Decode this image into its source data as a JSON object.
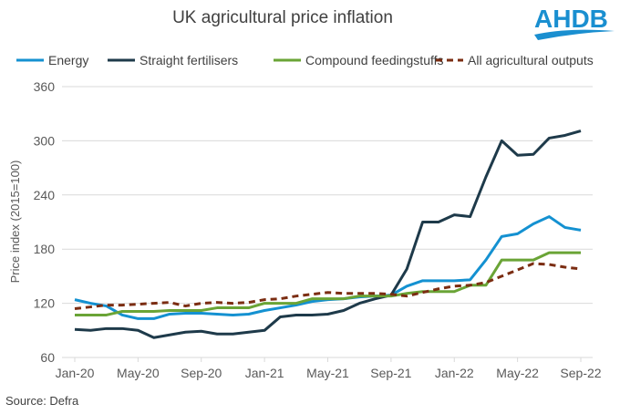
{
  "logo_text": "AHDB",
  "source": "Source: Defra",
  "chart_data": {
    "type": "line",
    "title": "UK agricultural price inflation",
    "ylabel": "Price index (2015=100)",
    "xlabel": "",
    "ylim": [
      60,
      360
    ],
    "yticks": [
      60,
      120,
      180,
      240,
      300,
      360
    ],
    "grid": true,
    "legend_position": "top",
    "x": [
      "Jan-20",
      "Feb-20",
      "Mar-20",
      "Apr-20",
      "May-20",
      "Jun-20",
      "Jul-20",
      "Aug-20",
      "Sep-20",
      "Oct-20",
      "Nov-20",
      "Dec-20",
      "Jan-21",
      "Feb-21",
      "Mar-21",
      "Apr-21",
      "May-21",
      "Jun-21",
      "Jul-21",
      "Aug-21",
      "Sep-21",
      "Oct-21",
      "Nov-21",
      "Dec-21",
      "Jan-22",
      "Feb-22",
      "Mar-22",
      "Apr-22",
      "May-22",
      "Jun-22",
      "Jul-22",
      "Aug-22",
      "Sep-22"
    ],
    "xtick_labels": [
      "Jan-20",
      "May-20",
      "Sep-20",
      "Jan-21",
      "May-21",
      "Sep-21",
      "Jan-22",
      "May-22",
      "Sep-22"
    ],
    "series": [
      {
        "name": "Energy",
        "color": "#1491d1",
        "dash": false,
        "values": [
          124,
          120,
          117,
          107,
          103,
          103,
          108,
          109,
          109,
          108,
          107,
          108,
          112,
          115,
          118,
          122,
          124,
          125,
          127,
          128,
          129,
          139,
          145,
          145,
          145,
          146,
          168,
          194,
          197,
          208,
          216,
          204,
          201
        ]
      },
      {
        "name": "Straight fertilisers",
        "color": "#1e3a4a",
        "dash": false,
        "values": [
          91,
          90,
          92,
          92,
          90,
          82,
          85,
          88,
          89,
          86,
          86,
          88,
          90,
          105,
          107,
          107,
          108,
          112,
          120,
          125,
          129,
          158,
          210,
          210,
          218,
          216,
          260,
          300,
          284,
          285,
          303,
          306,
          311
        ]
      },
      {
        "name": "Compound feedingstuffs",
        "color": "#6aa436",
        "dash": false,
        "values": [
          107,
          107,
          107,
          111,
          111,
          111,
          112,
          112,
          112,
          115,
          115,
          115,
          120,
          120,
          120,
          125,
          125,
          125,
          128,
          128,
          128,
          131,
          133,
          133,
          133,
          140,
          140,
          168,
          168,
          168,
          176,
          176,
          176
        ]
      },
      {
        "name": "All agricultural outputs",
        "color": "#7b2d12",
        "dash": true,
        "values": [
          114,
          116,
          118,
          118,
          119,
          120,
          121,
          117,
          120,
          121,
          120,
          121,
          124,
          125,
          128,
          130,
          132,
          131,
          131,
          131,
          130,
          128,
          132,
          136,
          139,
          140,
          143,
          150,
          157,
          164,
          163,
          160,
          158
        ]
      }
    ]
  }
}
